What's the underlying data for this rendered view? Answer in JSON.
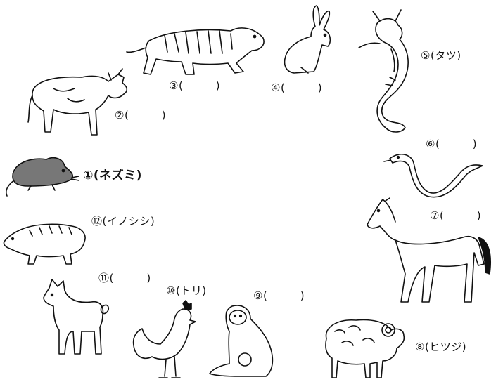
{
  "labels": {
    "rat": "①(ネズミ)",
    "ox": "②(　　　)",
    "tiger": "③(　　　)",
    "rabbit": "④(　　　)",
    "dragon": "⑤(タツ)",
    "snake": "⑥(　　　)",
    "horse": "⑦(　　　)",
    "sheep": "⑧(ヒツジ)",
    "monkey": "⑨(　　　)",
    "rooster": "⑩(トリ)",
    "dog": "⑪(　　　)",
    "boar": "⑫(イノシシ)"
  }
}
